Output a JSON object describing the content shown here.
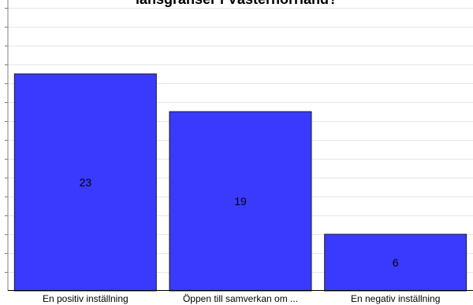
{
  "chart_data": {
    "type": "bar",
    "title": "länsgränser i Västernorrland?",
    "categories": [
      "En positiv inställning",
      "Öppen till samverkan om ...",
      "En negativ inställning"
    ],
    "values": [
      23,
      19,
      6
    ],
    "xlabel": "",
    "ylabel": "",
    "ylim": [
      0,
      28
    ],
    "grid": true,
    "bar_color": "#3a3aff",
    "bar_edge_color": "#1a1a1a",
    "grid_color": "#e6e6e6"
  }
}
